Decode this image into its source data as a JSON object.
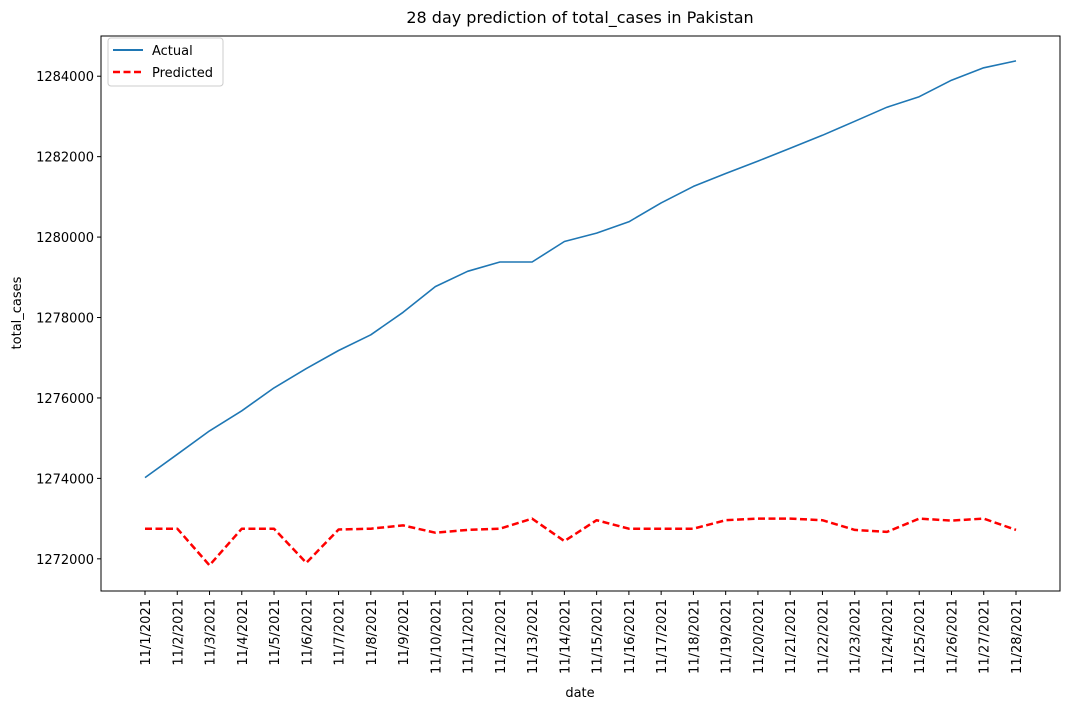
{
  "chart_data": {
    "type": "line",
    "title": "28 day prediction of total_cases in Pakistan",
    "xlabel": "date",
    "ylabel": "total_cases",
    "categories": [
      "11/1/2021",
      "11/2/2021",
      "11/3/2021",
      "11/4/2021",
      "11/5/2021",
      "11/6/2021",
      "11/7/2021",
      "11/8/2021",
      "11/9/2021",
      "11/10/2021",
      "11/11/2021",
      "11/12/2021",
      "11/13/2021",
      "11/14/2021",
      "11/15/2021",
      "11/16/2021",
      "11/17/2021",
      "11/18/2021",
      "11/19/2021",
      "11/20/2021",
      "11/21/2021",
      "11/22/2021",
      "11/23/2021",
      "11/24/2021",
      "11/25/2021",
      "11/26/2021",
      "11/27/2021",
      "11/28/2021"
    ],
    "ylim": [
      1271200,
      1285000
    ],
    "yticks": [
      1272000,
      1274000,
      1276000,
      1278000,
      1280000,
      1282000,
      1284000
    ],
    "legend_position": "top-left",
    "grid": false,
    "series": [
      {
        "name": "Actual",
        "color": "#1f77b4",
        "style": "solid",
        "values": [
          1274020,
          1274600,
          1275180,
          1275680,
          1276250,
          1276730,
          1277180,
          1277570,
          1278130,
          1278770,
          1279150,
          1279380,
          1279380,
          1279890,
          1280100,
          1280380,
          1280850,
          1281260,
          1281580,
          1281890,
          1282210,
          1282530,
          1282880,
          1283230,
          1283490,
          1283900,
          1284210,
          1284380
        ]
      },
      {
        "name": "Predicted",
        "color": "#ff0000",
        "style": "dashed",
        "values": [
          1272750,
          1272750,
          1271840,
          1272750,
          1272750,
          1271900,
          1272730,
          1272750,
          1272830,
          1272650,
          1272720,
          1272750,
          1273000,
          1272440,
          1272960,
          1272750,
          1272750,
          1272750,
          1272960,
          1273000,
          1273000,
          1272960,
          1272720,
          1272670,
          1273000,
          1272950,
          1273000,
          1272720
        ]
      }
    ]
  }
}
